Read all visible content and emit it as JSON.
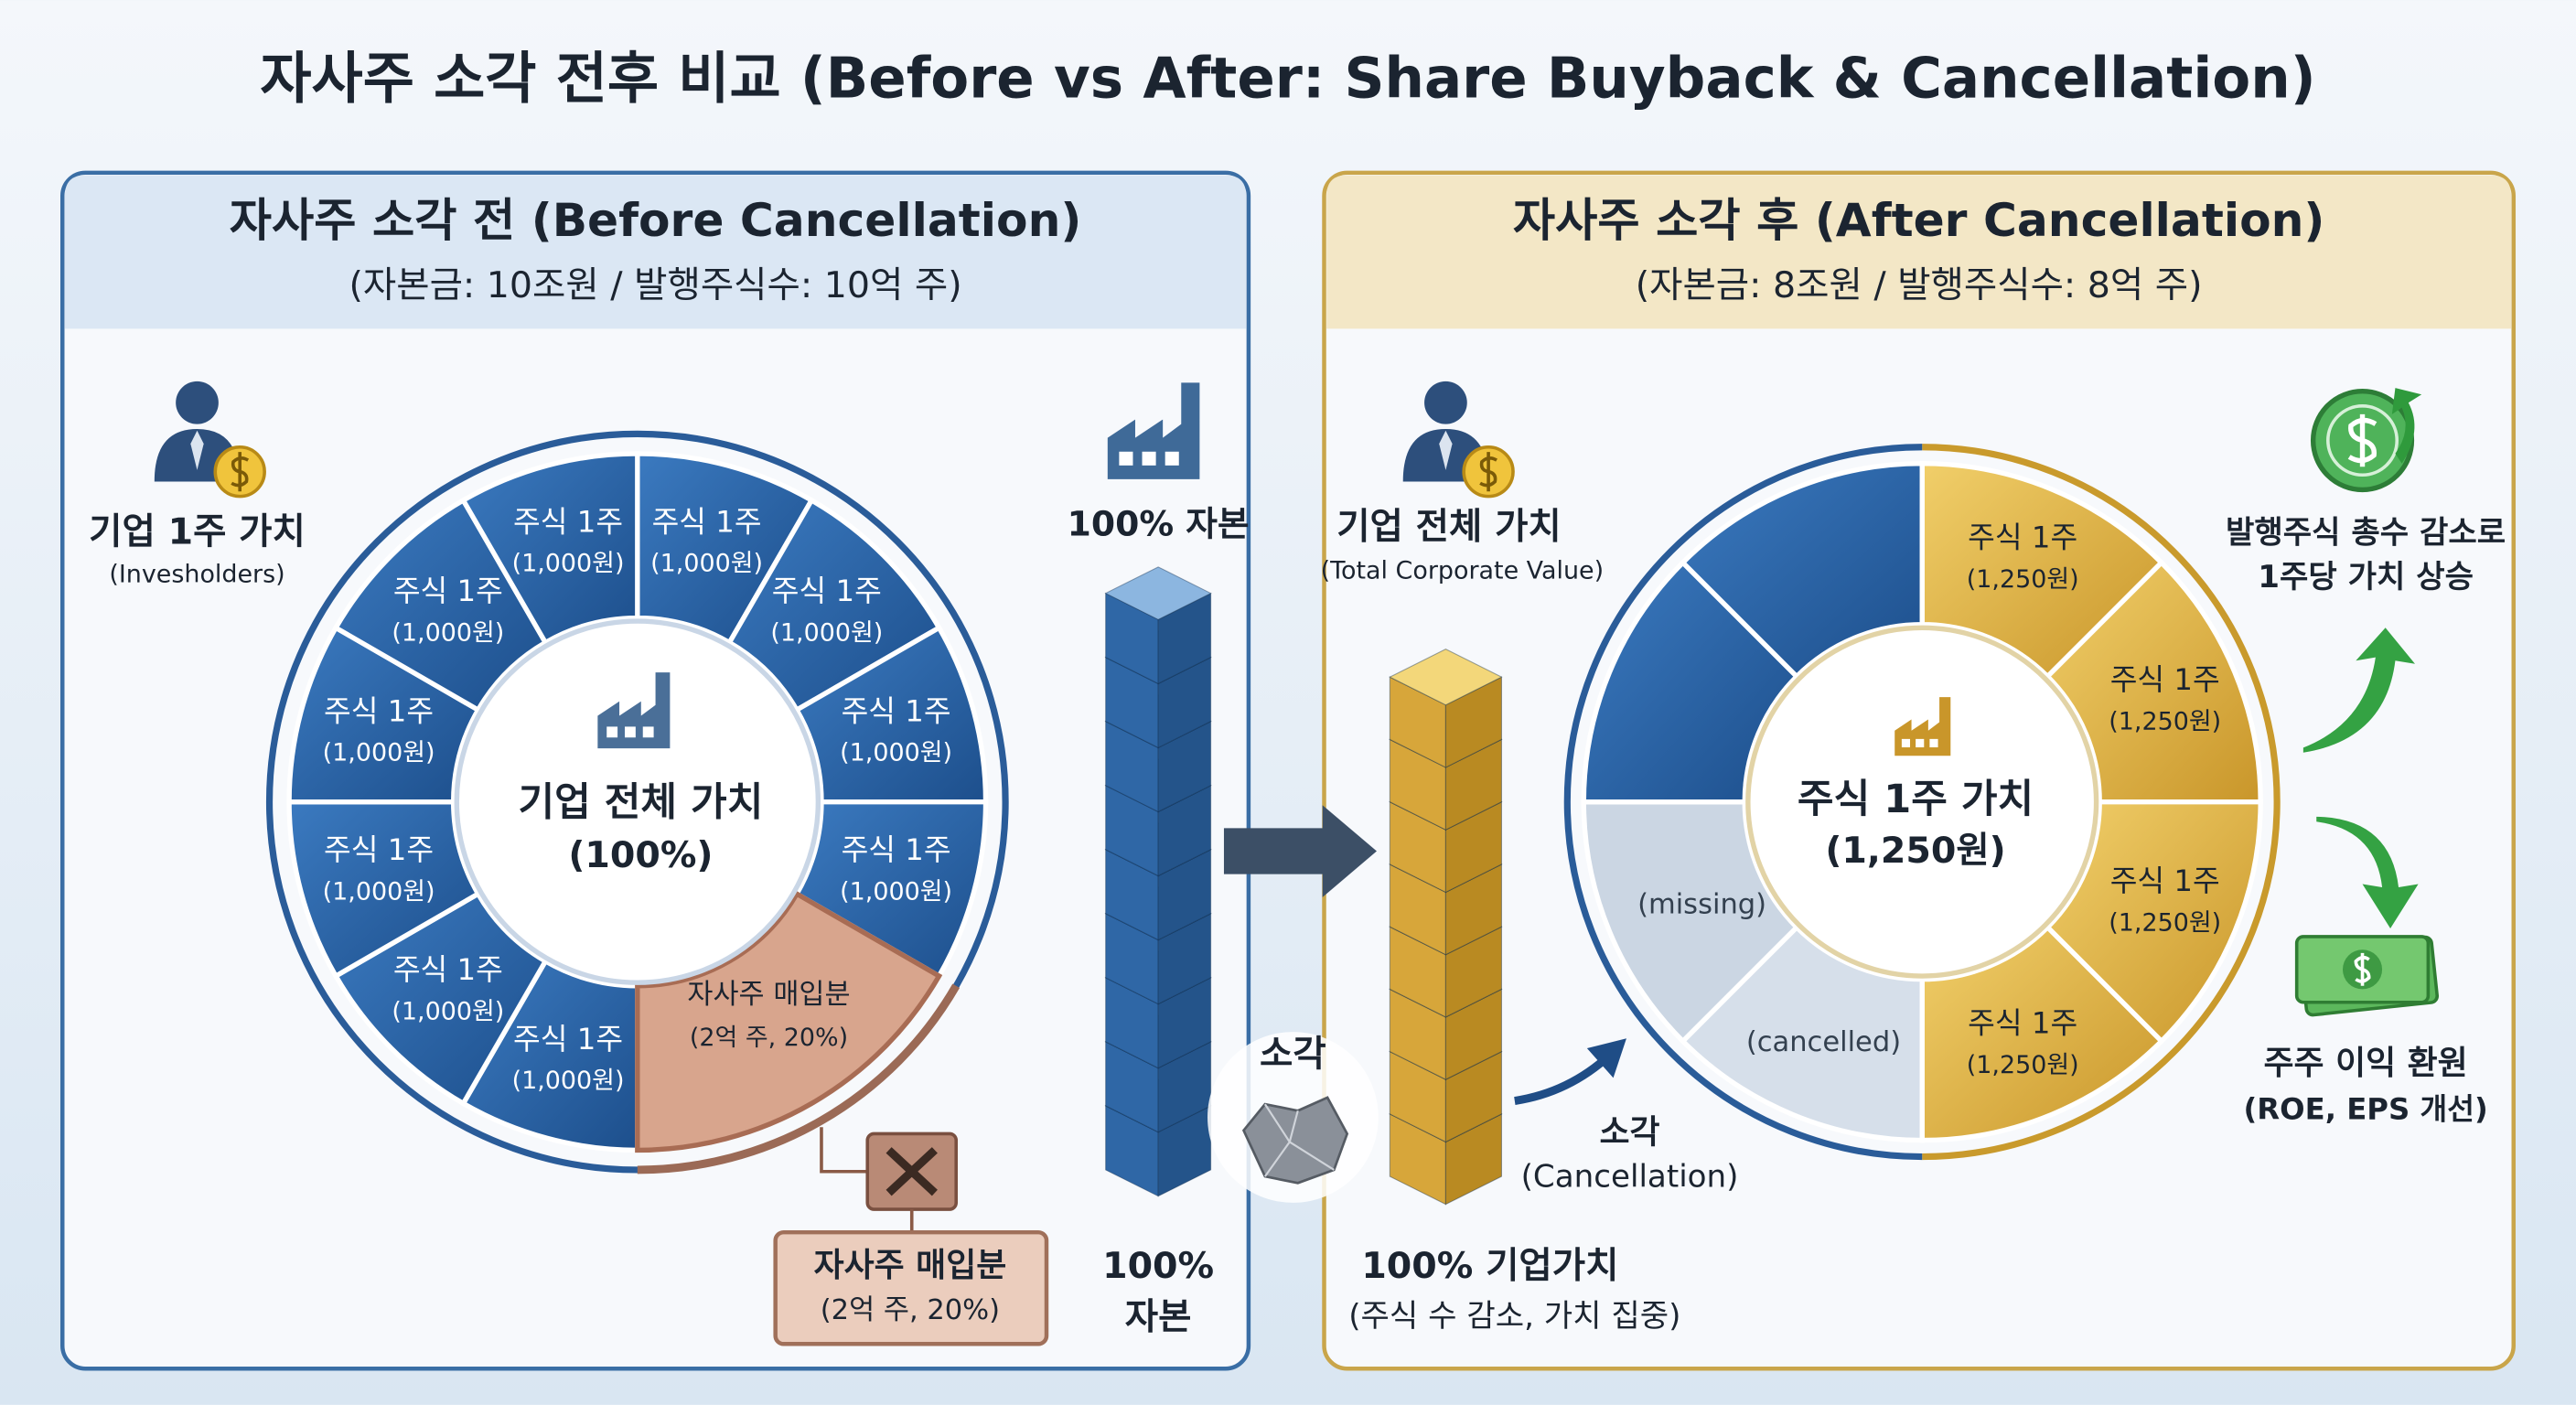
{
  "title": "자사주 소각 전후 비교 (Before vs After: Share Buyback & Cancellation)",
  "before": {
    "title": "자사주 소각 전 (Before Cancellation)",
    "subtitle": "(자본금: 10조원 / 발행주식수: 10억 주)",
    "investor": {
      "label": "기업 1주 가치",
      "note": "(Invesholders)"
    },
    "center": {
      "label": "기업 전체 가치",
      "note": "(100%)"
    },
    "shares": [
      {
        "label": "주식 1주",
        "price": "(1,000원)"
      },
      {
        "label": "주식 1주",
        "price": "(1,000원)"
      },
      {
        "label": "주식 1주",
        "price": "(1,000원)"
      },
      {
        "label": "주식 1주",
        "price": "(1,000원)"
      },
      {
        "label": "주식 1주",
        "price": "(1,000원)"
      },
      {
        "label": "주식 1주",
        "price": "(1,000원)"
      },
      {
        "label": "주식 1주",
        "price": "(1,000원)"
      },
      {
        "label": "주식 1주",
        "price": "(1,000원)"
      },
      {
        "label": "주식 1주",
        "price": "(1,000원)"
      },
      {
        "label": "주식 1주",
        "price": "(1,000원)"
      }
    ],
    "buyback_segment": {
      "label": "자사주 매입분",
      "note": "(2억 주, 20%)"
    },
    "buyback_box": {
      "label": "자사주 매입분",
      "note": "(2억 주, 20%)"
    },
    "capital_top": "100% 자본",
    "capital_bottom": {
      "label": "100%",
      "note": "자본"
    }
  },
  "transition": {
    "label": "소각"
  },
  "after": {
    "title": "자사주 소각 후 (After Cancellation)",
    "subtitle": "(자본금: 8조원 / 발행주식수: 8억 주)",
    "investor": {
      "label": "기업 전체 가치",
      "note": "(Total Corporate Value)"
    },
    "center": {
      "label": "주식 1주 가치",
      "note": "(1,250원)"
    },
    "shares": [
      {
        "label": "주식 1주",
        "price": "(1,250원)"
      },
      {
        "label": "주식 1주",
        "price": "(1,250원)"
      },
      {
        "label": "주식 1주",
        "price": "(1,250원)"
      },
      {
        "label": "주식 1주",
        "price": "(1,250원)"
      }
    ],
    "removed_segments": [
      "(cancelled)",
      "(missing)"
    ],
    "cancellation": {
      "label": "소각",
      "note": "(Cancellation)"
    },
    "value_stack": {
      "label": "100% 기업가치",
      "note": "(주식 수 감소, 가치 집중)"
    },
    "effect_value": [
      "발행주식 총수 감소로",
      "1주당 가치 상승"
    ],
    "effect_return": {
      "label": "주주 이익 환원",
      "note": "(ROE, EPS 개선)"
    }
  }
}
